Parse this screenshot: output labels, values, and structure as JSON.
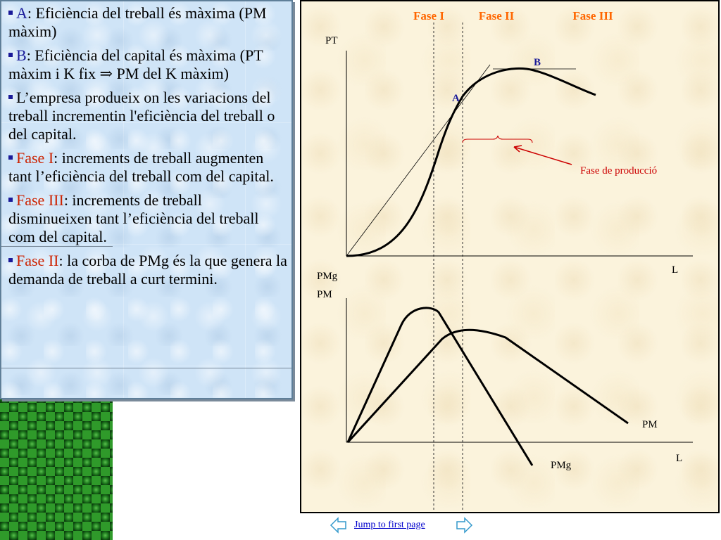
{
  "bullets": [
    {
      "term": "A",
      "text": ": Eficiència del treball és màxima (PM màxim)"
    },
    {
      "term": "B",
      "text": ": Eficiència del capital és màxima (PT màxim i K fix ⇒ PM del K màxim)"
    },
    {
      "term": "",
      "text": "L’empresa produeix on les variacions del treball incrementin l'eficiència del treball o del capital."
    },
    {
      "term": "Fase I",
      "text": ": increments de treball augmenten tant l’eficiència del treball com del capital."
    },
    {
      "term": "Fase III",
      "text": ": increments de treball disminueixen tant l’eficiència del treball com del capital."
    },
    {
      "term": "Fase II",
      "text": ": la corba de PMg és la que genera la demanda de treball a curt termini."
    }
  ],
  "chart": {
    "phases": [
      "Fase I",
      "Fase II",
      "Fase III"
    ],
    "top_ylabel": "PT",
    "top_xlabel": "L",
    "point_a": "A",
    "point_b": "B",
    "annotation": "Fase de producció",
    "bottom_ylabel_1": "PMg",
    "bottom_ylabel_2": "PM",
    "bottom_xlabel": "L",
    "curve_pm": "PM",
    "curve_pmg": "PMg"
  },
  "nav": {
    "link_text": "Jump to first page",
    "prev_icon": "left-arrow-icon",
    "next_icon": "right-arrow-icon"
  },
  "colors": {
    "phase_label": "#ff6600",
    "point_label": "#1a1a99",
    "annotation": "#cc0000",
    "term_blue": "#1a1a99",
    "term_red": "#cc2200"
  }
}
